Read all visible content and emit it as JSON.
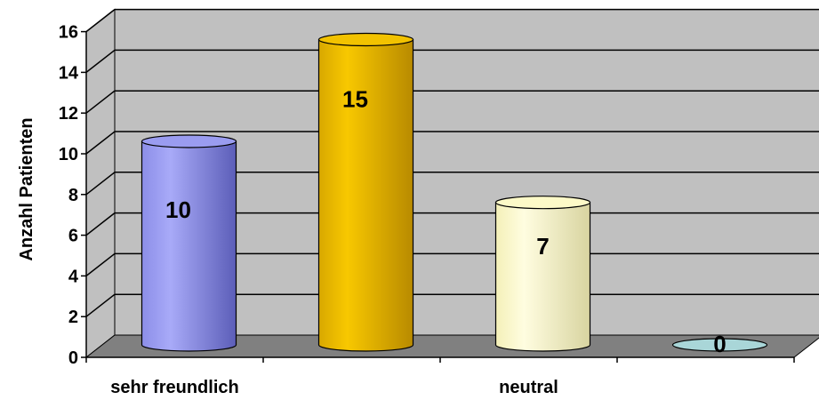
{
  "chart_data": {
    "type": "bar",
    "style": "3d-cylinder",
    "categories": [
      "sehr freundlich",
      "",
      "neutral",
      ""
    ],
    "category_tick_labels": [
      "sehr freundlich",
      "neutral"
    ],
    "values": [
      10,
      15,
      7,
      0
    ],
    "data_labels": [
      "10",
      "15",
      "7",
      "0"
    ],
    "bar_colors": [
      "#9a9cf0",
      "#f2c200",
      "#fdfac8",
      "#a9d6d8"
    ],
    "title": "",
    "xlabel": "",
    "ylabel": "Anzahl Patienten",
    "ylim": [
      0,
      16
    ],
    "yticks": [
      0,
      2,
      4,
      6,
      8,
      10,
      12,
      14,
      16
    ],
    "grid": true,
    "wall_color": "#c0c0c0",
    "floor_color": "#808080",
    "legend": "none"
  }
}
